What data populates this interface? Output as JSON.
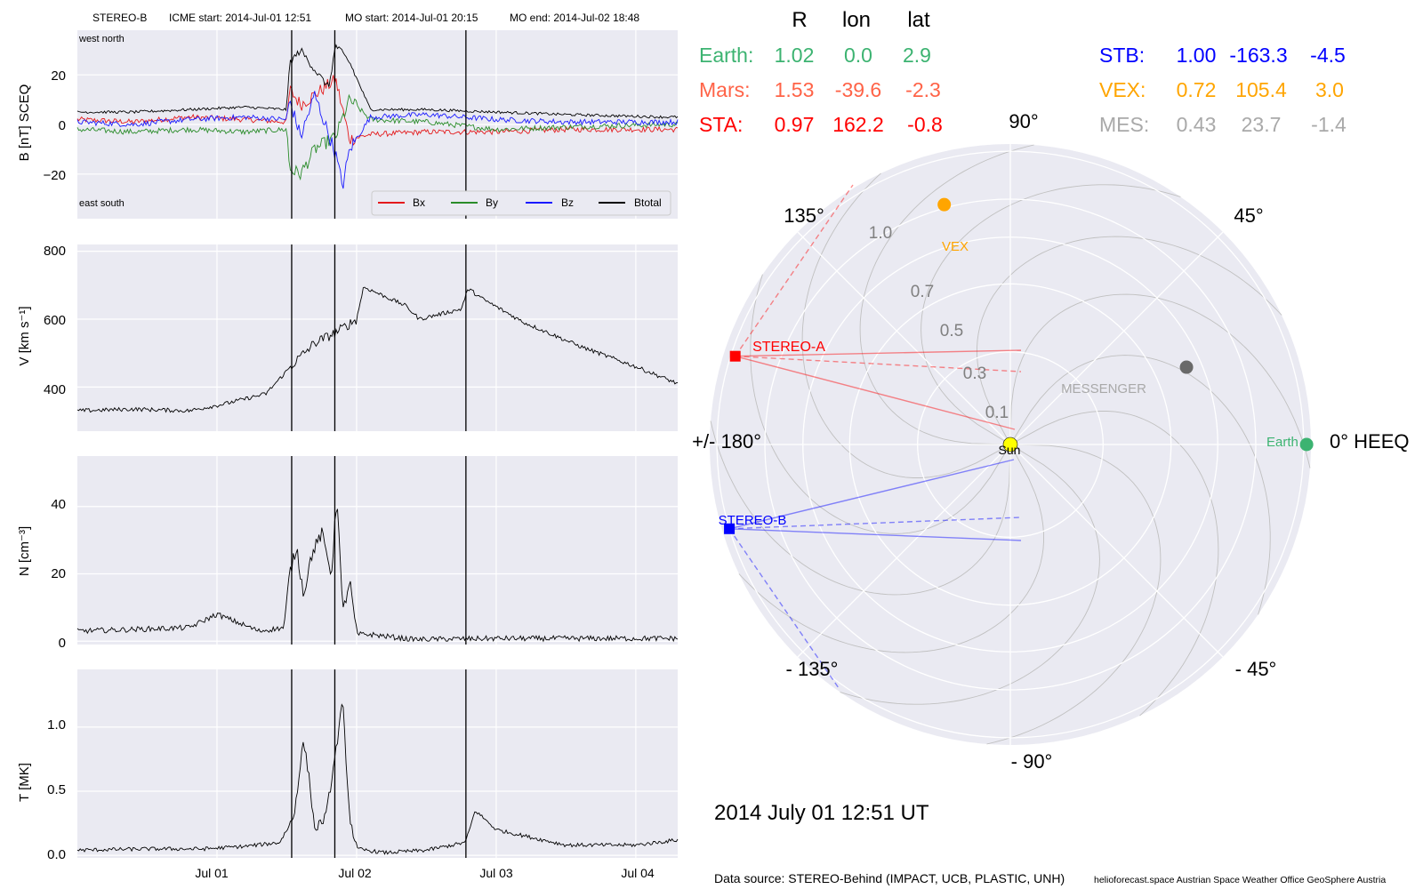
{
  "header": {
    "spacecraft": "STEREO-B",
    "icme_start": "ICME start: 2014-Jul-01 12:51",
    "mo_start": "MO start: 2014-Jul-01 20:15",
    "mo_end": "MO end: 2014-Jul-02 18:48"
  },
  "footer": {
    "date": "2014 July 01  12:51 UT",
    "source": "Data source: STEREO-Behind (IMPACT, UCB, PLASTIC, UNH)",
    "credits": "helioforecast.space   Austrian Space Weather Office   GeoSphere Austria"
  },
  "colors": {
    "bx": "#e41a1c",
    "by": "#2a8c2a",
    "bz": "#1a1aff",
    "btotal": "#000000",
    "earth": "#3cb371",
    "mars": "#ff6347",
    "sta": "#ff0000",
    "stb": "#0000ff",
    "vex": "#ffa500",
    "mes": "#a9a9a9",
    "panel_bg": "#eaeaf2"
  },
  "chart_data": [
    {
      "id": "b-field",
      "type": "line",
      "xlabel": "",
      "ylabel": "B [nT] SCEQ",
      "x_ticks": [
        "Jul 01",
        "Jul 02",
        "Jul 03",
        "Jul 04"
      ],
      "y_ticks": [
        "20",
        "0",
        "−20"
      ],
      "ylim": [
        -38,
        38
      ],
      "corner_labels": {
        "top": "west    north",
        "bottom": "east    south"
      },
      "legend": [
        "Bx",
        "By",
        "Bz",
        "Btotal"
      ],
      "vertical_lines": [
        "2014-07-01 12:51",
        "2014-07-01 20:15",
        "2014-07-02 18:48"
      ],
      "series": [
        {
          "name": "Bx",
          "x": [
            -1.0,
            -0.6,
            -0.2,
            0.2,
            0.5,
            0.52,
            0.6,
            0.7,
            0.85,
            0.95,
            1.1,
            1.5,
            2.0,
            2.5,
            3.2
          ],
          "y": [
            2,
            1,
            3,
            2,
            1,
            14,
            8,
            12,
            18,
            -6,
            -4,
            -3,
            -3,
            -2,
            -2
          ]
        },
        {
          "name": "By",
          "x": [
            -1.0,
            -0.6,
            -0.2,
            0.2,
            0.5,
            0.52,
            0.6,
            0.7,
            0.85,
            0.95,
            1.1,
            1.5,
            2.0,
            2.5,
            3.2
          ],
          "y": [
            -2,
            -3,
            -2,
            -3,
            -2,
            -18,
            -20,
            -10,
            -5,
            10,
            2,
            1,
            -2,
            -1,
            0
          ]
        },
        {
          "name": "Bz",
          "x": [
            -1.0,
            -0.6,
            -0.2,
            0.2,
            0.5,
            0.52,
            0.6,
            0.7,
            0.85,
            0.9,
            0.95,
            1.1,
            1.5,
            2.0,
            2.5,
            3.2
          ],
          "y": [
            1,
            0,
            2,
            3,
            2,
            10,
            -5,
            12,
            -12,
            -25,
            -10,
            3,
            4,
            2,
            1,
            1
          ]
        },
        {
          "name": "Btotal",
          "x": [
            -1.0,
            -0.6,
            -0.2,
            0.2,
            0.5,
            0.52,
            0.6,
            0.7,
            0.8,
            0.85,
            0.95,
            1.1,
            1.5,
            2.0,
            2.5,
            3.2
          ],
          "y": [
            5,
            5,
            6,
            7,
            6,
            25,
            30,
            22,
            15,
            32,
            25,
            6,
            6,
            5,
            4,
            3
          ]
        }
      ]
    },
    {
      "id": "speed",
      "type": "line",
      "xlabel": "",
      "ylabel": "V [km s⁻¹]",
      "y_ticks": [
        "800",
        "600",
        "400"
      ],
      "ylim": [
        270,
        820
      ],
      "x_ticks": [
        "Jul 01",
        "Jul 02",
        "Jul 03",
        "Jul 04"
      ],
      "vertical_lines": [
        "2014-07-01 12:51",
        "2014-07-01 20:15",
        "2014-07-02 18:48"
      ],
      "series": [
        {
          "name": "V",
          "x": [
            -1.0,
            -0.6,
            -0.2,
            0.05,
            0.35,
            0.55,
            0.7,
            0.85,
            1.0,
            1.05,
            1.35,
            1.45,
            1.75,
            1.8,
            1.9,
            2.2,
            2.6,
            3.0,
            3.3
          ],
          "y": [
            330,
            335,
            330,
            350,
            380,
            470,
            530,
            560,
            600,
            695,
            640,
            600,
            630,
            690,
            660,
            590,
            520,
            460,
            410
          ]
        }
      ]
    },
    {
      "id": "density",
      "type": "line",
      "xlabel": "",
      "ylabel": "N [cm⁻³]",
      "y_ticks": [
        "40",
        "20",
        "0"
      ],
      "ylim": [
        -1,
        55
      ],
      "x_ticks": [
        "Jul 01",
        "Jul 02",
        "Jul 03",
        "Jul 04"
      ],
      "vertical_lines": [
        "2014-07-01 12:51",
        "2014-07-01 20:15",
        "2014-07-02 18:48"
      ],
      "series": [
        {
          "name": "N",
          "x": [
            -1.0,
            -0.6,
            -0.2,
            0.0,
            0.3,
            0.48,
            0.52,
            0.57,
            0.62,
            0.68,
            0.75,
            0.82,
            0.86,
            0.9,
            0.95,
            1.0,
            1.1,
            1.4,
            2.0,
            3.0,
            3.3
          ],
          "y": [
            3,
            3.5,
            4,
            8,
            3,
            4,
            20,
            28,
            14,
            26,
            32,
            20,
            44,
            8,
            18,
            2,
            2,
            0.5,
            0.8,
            0.8,
            0.8
          ]
        }
      ]
    },
    {
      "id": "temperature",
      "type": "line",
      "xlabel": "",
      "ylabel": "T [MK]",
      "y_ticks": [
        "1.0",
        "0.5",
        "0.0"
      ],
      "ylim": [
        -0.02,
        1.45
      ],
      "x_ticks": [
        "Jul 01",
        "Jul 02",
        "Jul 03",
        "Jul 04"
      ],
      "vertical_lines": [
        "2014-07-01 12:51",
        "2014-07-01 20:15",
        "2014-07-02 18:48"
      ],
      "series": [
        {
          "name": "T",
          "x": [
            -1.0,
            -0.5,
            -0.1,
            0.2,
            0.45,
            0.55,
            0.62,
            0.66,
            0.7,
            0.78,
            0.85,
            0.9,
            0.95,
            1.0,
            1.2,
            1.5,
            1.78,
            1.85,
            2.0,
            2.5,
            3.0,
            3.3
          ],
          "y": [
            0.04,
            0.05,
            0.05,
            0.07,
            0.1,
            0.3,
            0.9,
            0.6,
            0.2,
            0.3,
            0.8,
            1.2,
            0.3,
            0.05,
            0.02,
            0.04,
            0.1,
            0.35,
            0.2,
            0.08,
            0.08,
            0.12
          ]
        }
      ]
    },
    {
      "id": "orbit-plot",
      "type": "scatter",
      "polar": true,
      "xlabel": "",
      "ylabel": "",
      "r_ticks": [
        "0.1",
        "0.3",
        "0.5",
        "0.7",
        "1.0"
      ],
      "angle_labels": {
        "zero": "0° HEEQ",
        "p45": "45°",
        "p90": "90°",
        "p135": "135°",
        "p180": "+/- 180°",
        "m135": "- 135°",
        "m90": "- 90°",
        "m45": "- 45°"
      },
      "bodies": [
        {
          "name": "Sun",
          "r": 0.0,
          "lon": 0.0,
          "color": "#ffff00",
          "shape": "circle"
        },
        {
          "name": "Earth",
          "r": 1.02,
          "lon": 0.0,
          "color": "#3cb371",
          "shape": "circle"
        },
        {
          "name": "VEX",
          "r": 0.72,
          "lon": 105.4,
          "color": "#ffa500",
          "shape": "circle"
        },
        {
          "name": "MESSENGER",
          "r": 0.43,
          "lon": 23.7,
          "color": "#696969",
          "shape": "circle"
        },
        {
          "name": "STEREO-A",
          "r": 0.97,
          "lon": 162.2,
          "color": "#ff0000",
          "shape": "square"
        },
        {
          "name": "STEREO-B",
          "r": 1.0,
          "lon": -163.3,
          "color": "#0000ff",
          "shape": "square"
        }
      ]
    }
  ],
  "positions_table": {
    "headers": [
      "R",
      "lon",
      "lat"
    ],
    "rows": [
      {
        "label": "Earth:",
        "r": "1.02",
        "lon": "0.0",
        "lat": "2.9",
        "color": "#3cb371"
      },
      {
        "label": "Mars:",
        "r": "1.53",
        "lon": "-39.6",
        "lat": "-2.3",
        "color": "#ff6347"
      },
      {
        "label": "STA:",
        "r": "0.97",
        "lon": "162.2",
        "lat": "-0.8",
        "color": "#ff0000"
      },
      {
        "label": "STB:",
        "r": "1.00",
        "lon": "-163.3",
        "lat": "-4.5",
        "color": "#0000ff"
      },
      {
        "label": "VEX:",
        "r": "0.72",
        "lon": "105.4",
        "lat": "3.0",
        "color": "#ffa500"
      },
      {
        "label": "MES:",
        "r": "0.43",
        "lon": "23.7",
        "lat": "-1.4",
        "color": "#a9a9a9"
      }
    ]
  }
}
